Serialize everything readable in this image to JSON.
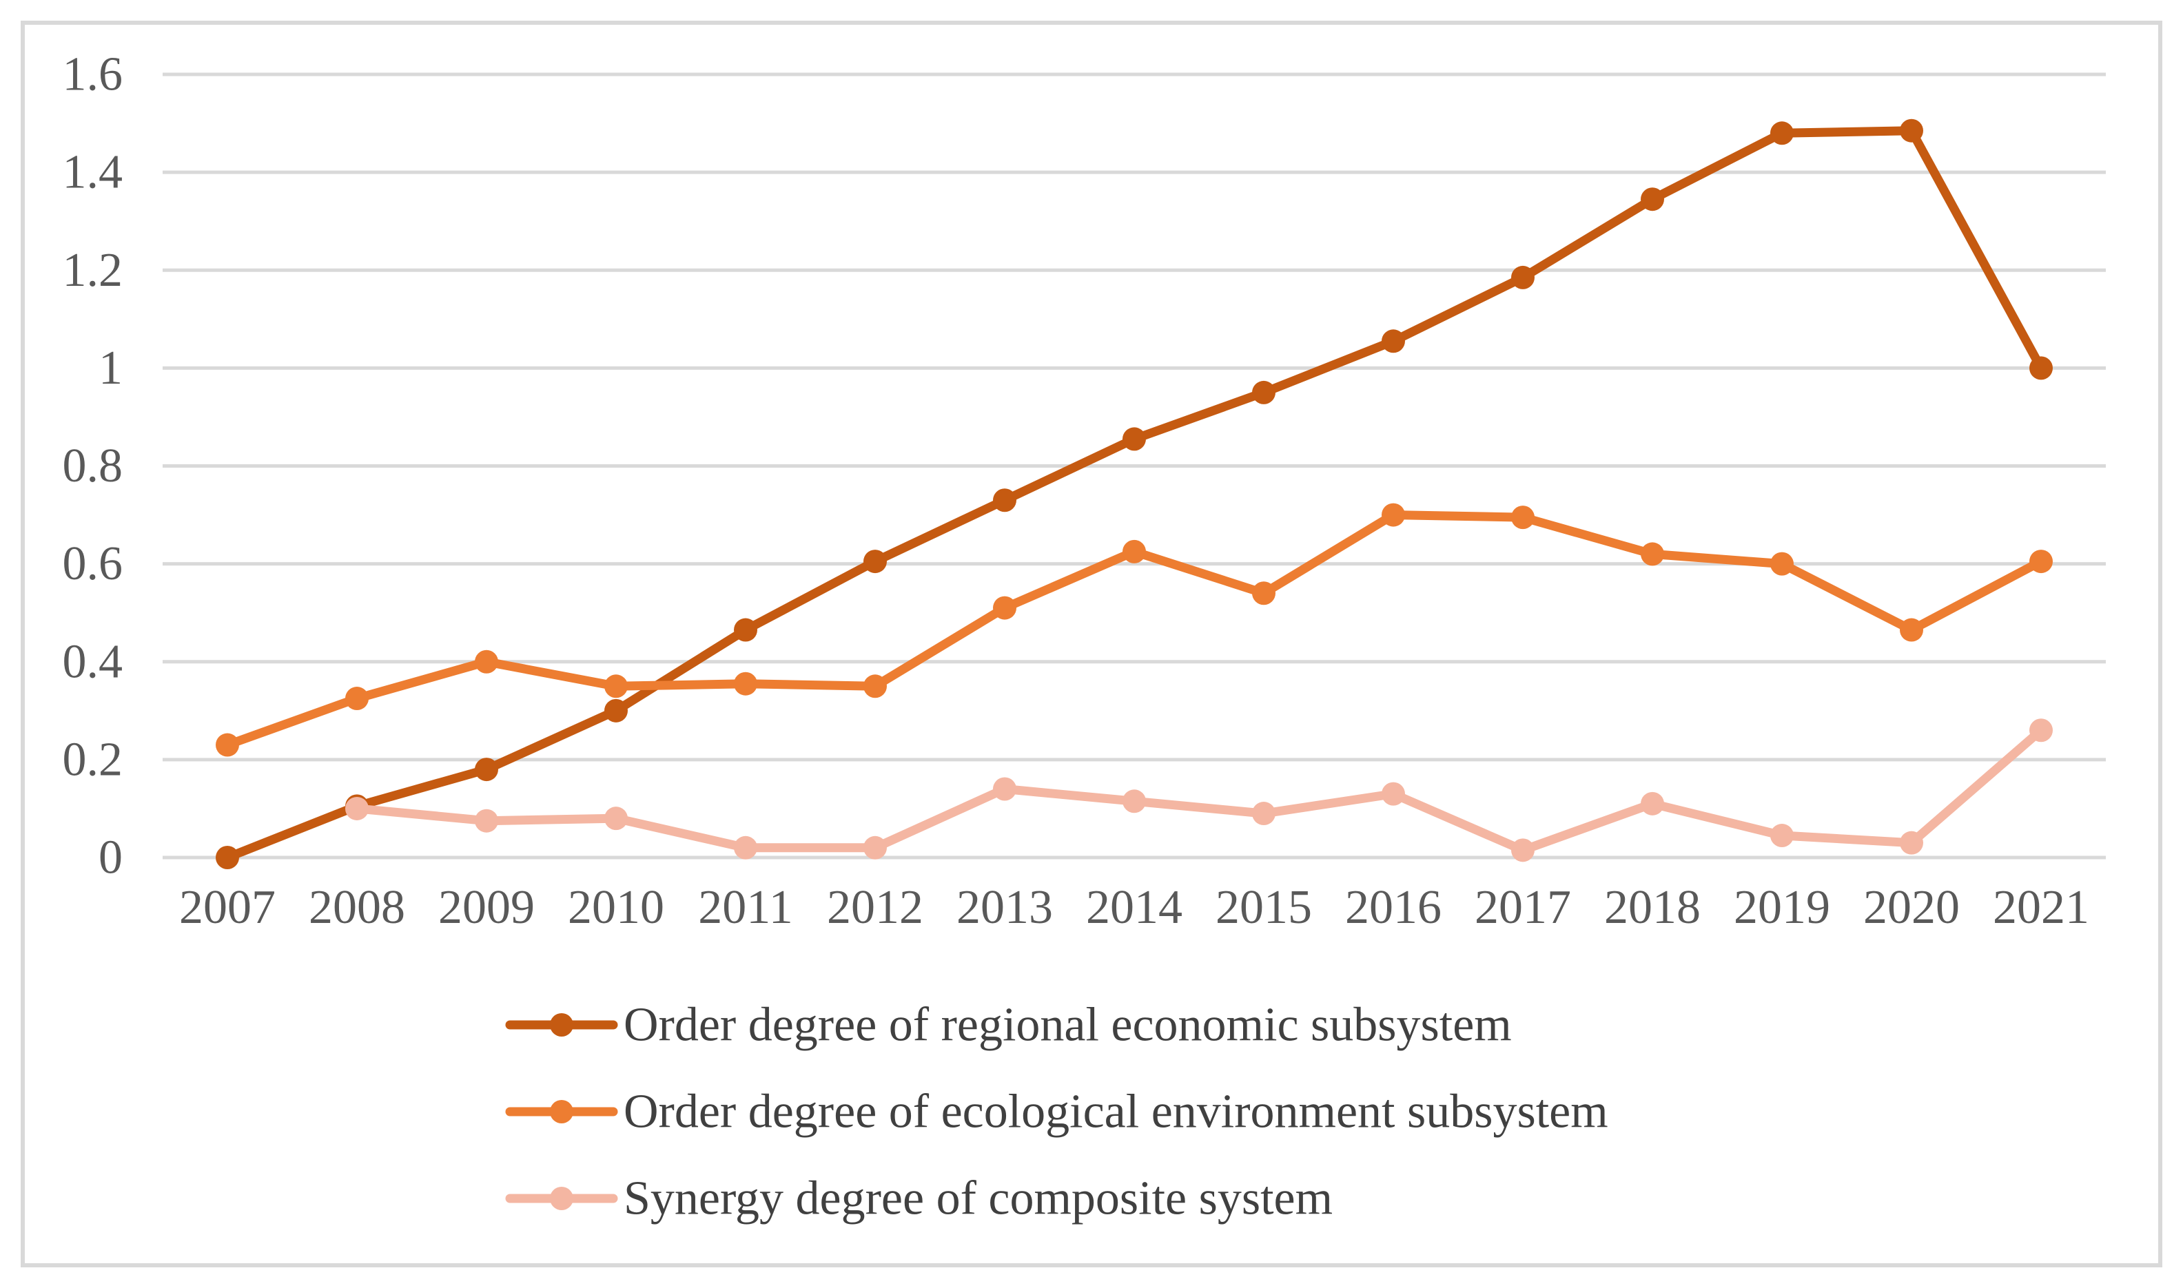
{
  "chart_data": {
    "type": "line",
    "title": "",
    "xlabel": "",
    "ylabel": "",
    "categories": [
      "2007",
      "2008",
      "2009",
      "2010",
      "2011",
      "2012",
      "2013",
      "2014",
      "2015",
      "2016",
      "2017",
      "2018",
      "2019",
      "2020",
      "2021"
    ],
    "ylim": [
      0,
      1.6
    ],
    "yticks": [
      0,
      0.2,
      0.4,
      0.6,
      0.8,
      1,
      1.2,
      1.4,
      1.6
    ],
    "ytick_labels": [
      "0",
      "0.2",
      "0.4",
      "0.6",
      "0.8",
      "1",
      "1.2",
      "1.4",
      "1.6"
    ],
    "grid": true,
    "legend_position": "bottom",
    "series": [
      {
        "name": "Order degree of regional economic subsystem",
        "color": "#c55a11",
        "values": [
          0.0,
          0.105,
          0.18,
          0.3,
          0.465,
          0.605,
          0.73,
          0.855,
          0.95,
          1.055,
          1.185,
          1.345,
          1.48,
          1.485,
          1.0
        ]
      },
      {
        "name": "Order degree of ecological environment subsystem",
        "color": "#ed7d31",
        "values": [
          0.23,
          0.325,
          0.4,
          0.35,
          0.355,
          0.35,
          0.51,
          0.625,
          0.54,
          0.7,
          0.695,
          0.62,
          0.6,
          0.465,
          0.605
        ]
      },
      {
        "name": "Synergy degree of composite system",
        "color": "#f4b6a2",
        "values": [
          null,
          0.1,
          0.075,
          0.08,
          0.02,
          0.02,
          0.14,
          0.115,
          0.09,
          0.13,
          0.015,
          0.11,
          0.045,
          0.03,
          0.26
        ]
      }
    ]
  }
}
